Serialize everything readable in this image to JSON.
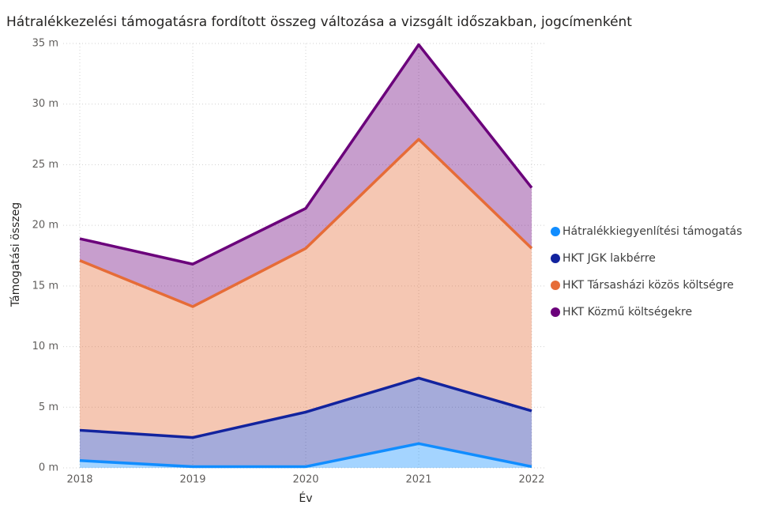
{
  "chart_data": {
    "type": "stacked_area",
    "title": "Hátralékkezelési támogatásra fordított összeg változása a vizsgált időszakban, jogcímenként",
    "x_label": "Év",
    "y_label": "Támogatási összeg",
    "categories": [
      "2018",
      "2019",
      "2020",
      "2021",
      "2022"
    ],
    "series": [
      {
        "name": "Hátralékkiegyenlítési támogatás",
        "color": "#118dff",
        "values": [
          0.6,
          0.1,
          0.1,
          2.0,
          0.1
        ]
      },
      {
        "name": "HKT JGK lakbérre",
        "color": "#12239e",
        "values": [
          2.5,
          2.4,
          4.5,
          5.4,
          4.6
        ]
      },
      {
        "name": "HKT Társasházi közös költségre",
        "color": "#e66c37",
        "values": [
          14.0,
          10.8,
          13.5,
          19.7,
          13.4
        ]
      },
      {
        "name": "HKT Közmű költségekre",
        "color": "#6b007b",
        "values": [
          1.8,
          3.5,
          3.3,
          7.8,
          5.0
        ]
      }
    ],
    "ylim": [
      0,
      35
    ],
    "yticks": [
      {
        "value": 0,
        "label": "0 m"
      },
      {
        "value": 5,
        "label": "5 m"
      },
      {
        "value": 10,
        "label": "10 m"
      },
      {
        "value": 15,
        "label": "15 m"
      },
      {
        "value": 20,
        "label": "20 m"
      },
      {
        "value": 25,
        "label": "25 m"
      },
      {
        "value": 30,
        "label": "30 m"
      },
      {
        "value": 35,
        "label": "35 m"
      }
    ],
    "grid": true,
    "legend": "right"
  }
}
